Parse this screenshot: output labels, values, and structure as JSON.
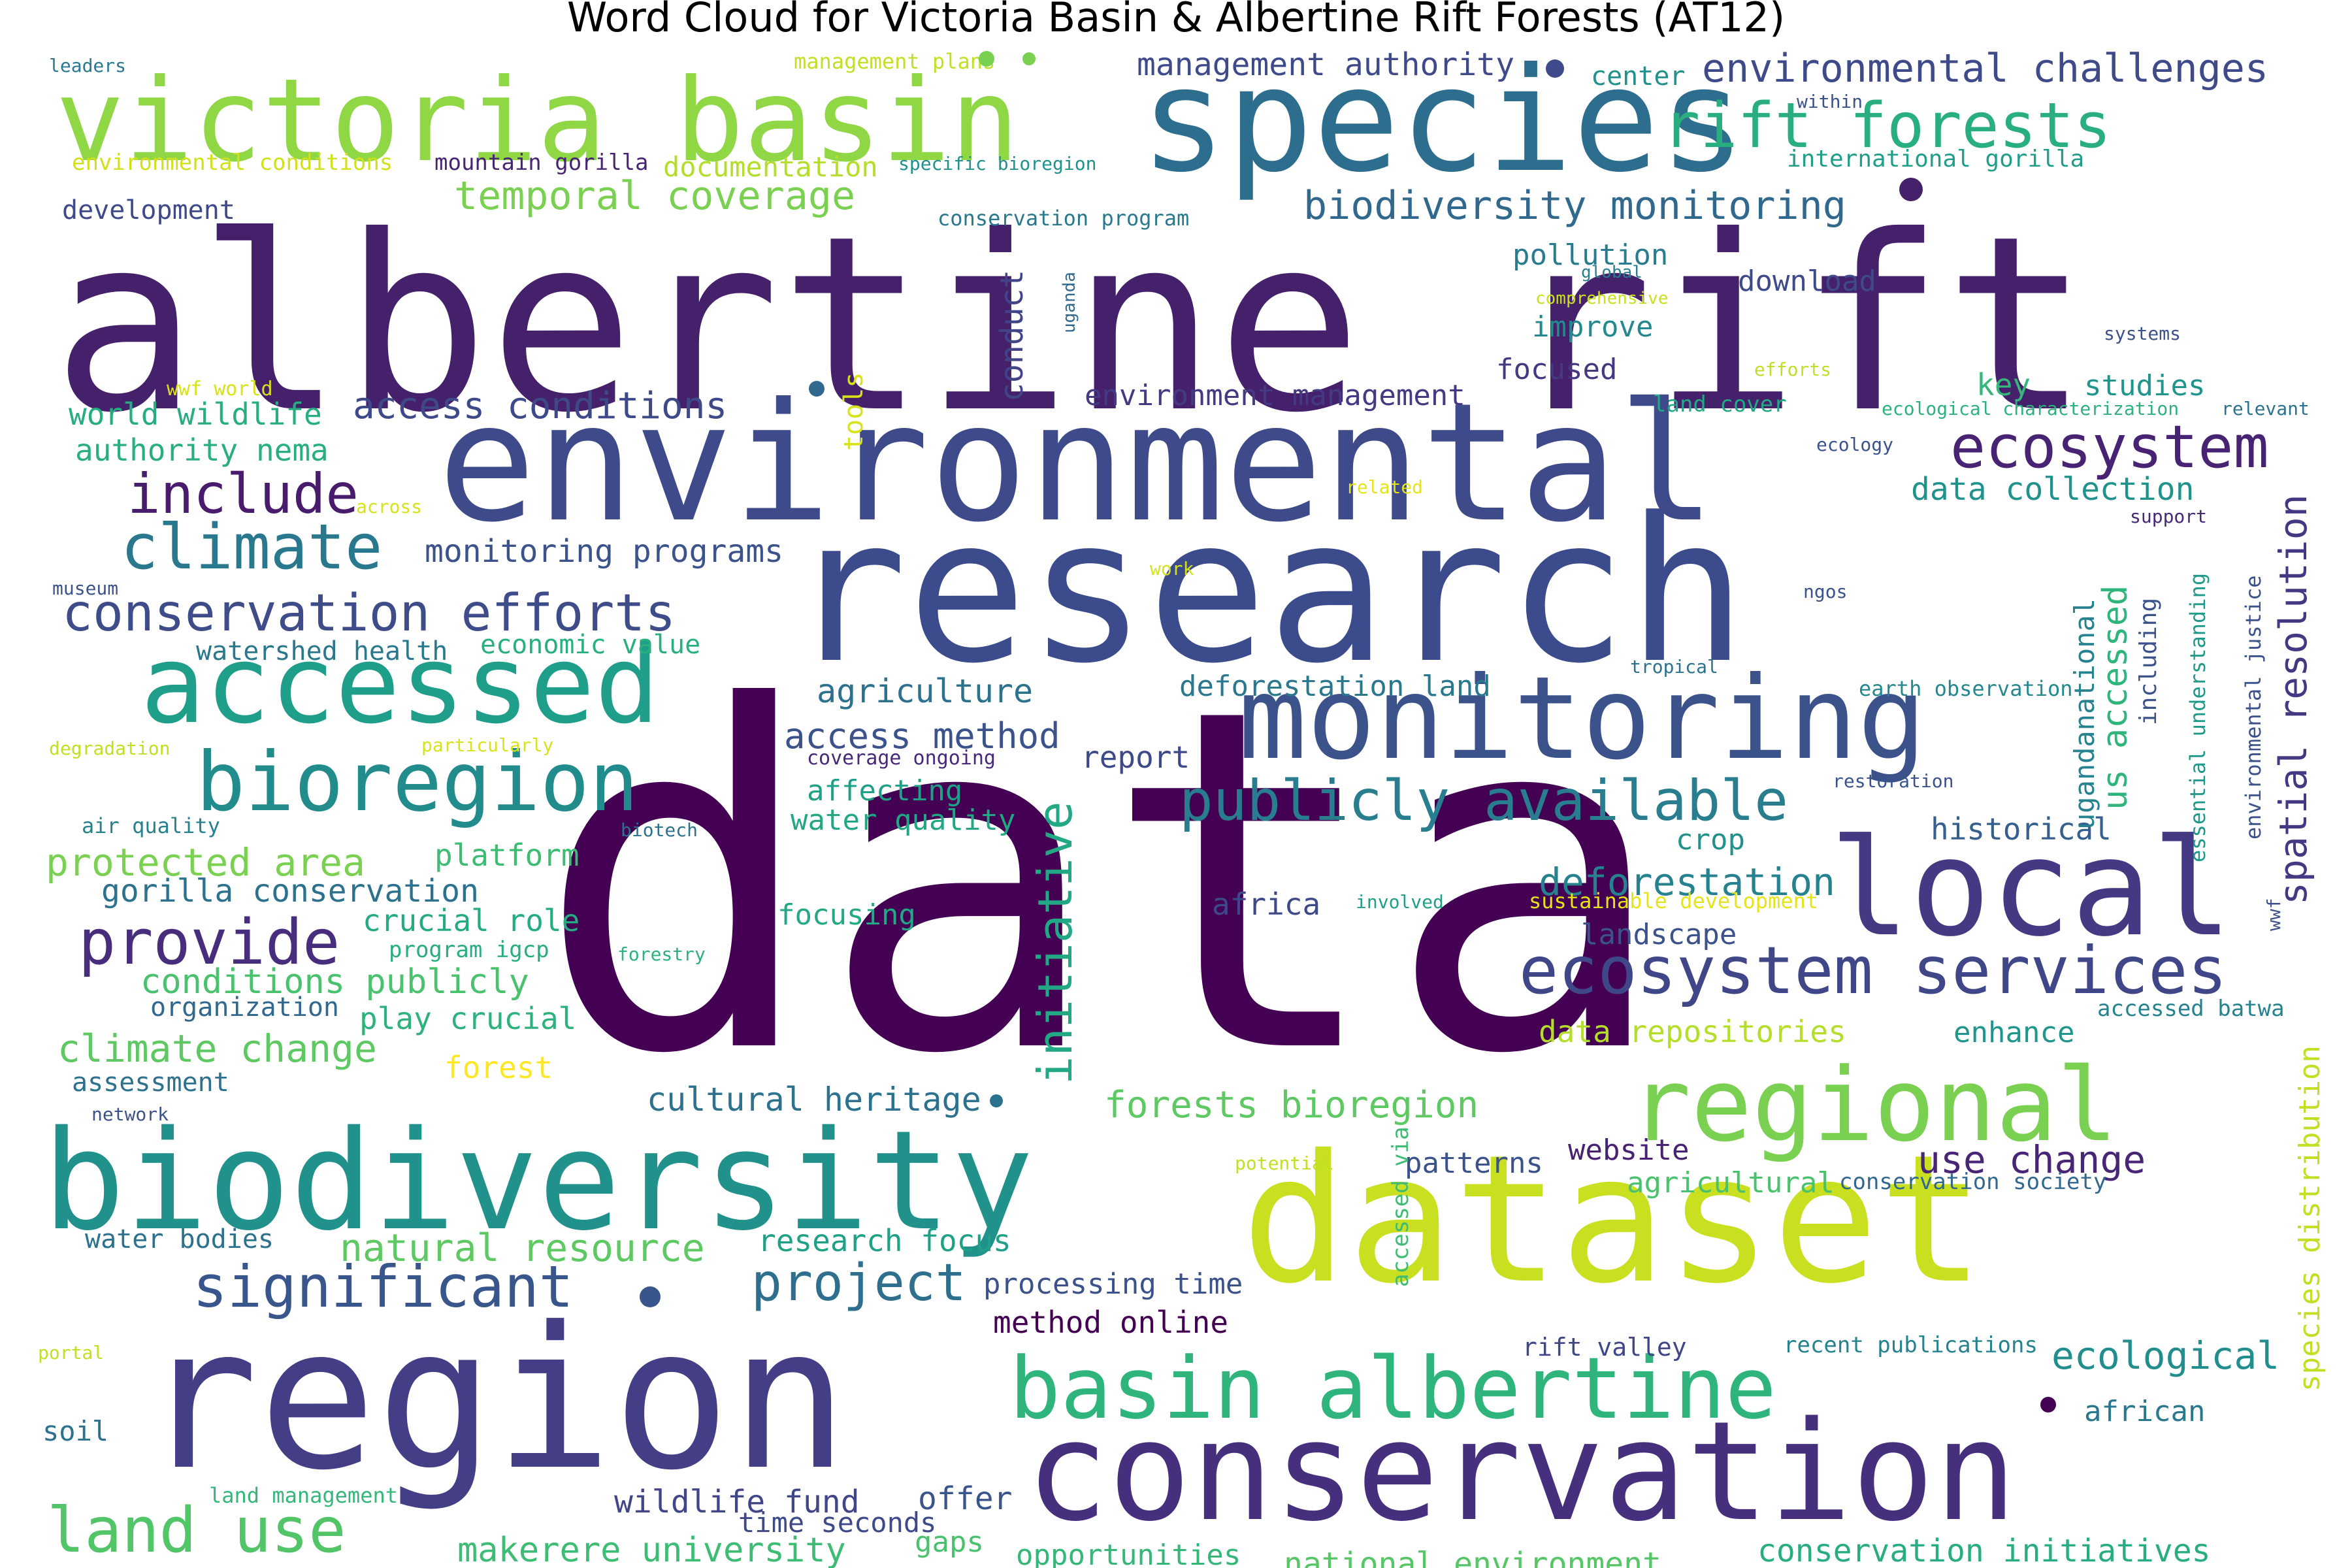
{
  "title": "Word Cloud for Victoria Basin & Albertine Rift Forests (AT12)",
  "words": [
    {
      "text": "data",
      "color": "#440154"
    },
    {
      "text": "albertine rift",
      "color": "#46216b"
    },
    {
      "text": "research",
      "color": "#3b4b8c"
    },
    {
      "text": "environmental",
      "color": "#3e4a89"
    },
    {
      "text": "region",
      "color": "#433e85"
    },
    {
      "text": "dataset",
      "color": "#c8e020"
    },
    {
      "text": "conservation",
      "color": "#46307e"
    },
    {
      "text": "biodiversity",
      "color": "#21918c"
    },
    {
      "text": "species",
      "color": "#2d6e8e"
    },
    {
      "text": "victoria basin",
      "color": "#8fd744"
    },
    {
      "text": "monitoring",
      "color": "#3b528b"
    },
    {
      "text": "local",
      "color": "#443a83"
    },
    {
      "text": "accessed",
      "color": "#1f9e89"
    },
    {
      "text": "regional",
      "color": "#7ad151"
    },
    {
      "text": "bioregion",
      "color": "#228c8d"
    },
    {
      "text": "basin albertine",
      "color": "#2fb47c"
    },
    {
      "text": "rift forests",
      "color": "#29af7f"
    },
    {
      "text": "ecosystem services",
      "color": "#3f4788"
    },
    {
      "text": "ecosystem",
      "color": "#482374"
    },
    {
      "text": "publicly available",
      "color": "#287d8e"
    },
    {
      "text": "significant",
      "color": "#39568c"
    },
    {
      "text": "climate",
      "color": "#2a788e"
    },
    {
      "text": "provide",
      "color": "#472d7b"
    },
    {
      "text": "include",
      "color": "#481b6d"
    },
    {
      "text": "conservation efforts",
      "color": "#3e4c8a"
    },
    {
      "text": "land use",
      "color": "#52c569"
    },
    {
      "text": "project",
      "color": "#2e6f8e"
    },
    {
      "text": "spatial resolution",
      "color": "#453882"
    },
    {
      "text": "initiative",
      "color": "#22a884"
    },
    {
      "text": "environmental challenges",
      "color": "#3e4a89"
    },
    {
      "text": "biodiversity monitoring",
      "color": "#31688e"
    },
    {
      "text": "temporal coverage",
      "color": "#7ad151"
    },
    {
      "text": "access conditions",
      "color": "#3e4989"
    },
    {
      "text": "deforestation",
      "color": "#26828e"
    },
    {
      "text": "climate change",
      "color": "#5ec962"
    },
    {
      "text": "protected area",
      "color": "#7ad151"
    },
    {
      "text": "natural resource",
      "color": "#5ec962"
    },
    {
      "text": "ecological",
      "color": "#218e8d"
    },
    {
      "text": "use change",
      "color": "#482576"
    },
    {
      "text": "makerere university",
      "color": "#3dbc74"
    },
    {
      "text": "national environment",
      "color": "#56c667"
    },
    {
      "text": "conservation initiatives",
      "color": "#27ad81"
    },
    {
      "text": "access method",
      "color": "#3b528b"
    },
    {
      "text": "agriculture",
      "color": "#2c728e"
    },
    {
      "text": "data collection",
      "color": "#20928c"
    },
    {
      "text": "environment management",
      "color": "#443983"
    },
    {
      "text": "management authority",
      "color": "#3e4a89"
    },
    {
      "text": "monitoring programs",
      "color": "#3b528b"
    },
    {
      "text": "world wildlife",
      "color": "#27ad81"
    },
    {
      "text": "authority nema",
      "color": "#29af7f"
    },
    {
      "text": "gorilla conservation",
      "color": "#2c728e"
    },
    {
      "text": "conditions publicly",
      "color": "#4ac16d"
    },
    {
      "text": "play crucial",
      "color": "#2db27d"
    },
    {
      "text": "crucial role",
      "color": "#25ab82"
    },
    {
      "text": "forests bioregion",
      "color": "#5ec962"
    },
    {
      "text": "cultural heritage",
      "color": "#2c718e"
    },
    {
      "text": "research focus",
      "color": "#1fa187"
    },
    {
      "text": "processing time",
      "color": "#3b528b"
    },
    {
      "text": "method online",
      "color": "#440154"
    },
    {
      "text": "wildlife fund",
      "color": "#404688"
    },
    {
      "text": "offer",
      "color": "#3a548c"
    },
    {
      "text": "time seconds",
      "color": "#3e4989"
    },
    {
      "text": "opportunities",
      "color": "#35b779"
    },
    {
      "text": "gaps",
      "color": "#4ac16d"
    },
    {
      "text": "pollution",
      "color": "#287c8e"
    },
    {
      "text": "download",
      "color": "#3e4a89"
    },
    {
      "text": "improve",
      "color": "#23898e"
    },
    {
      "text": "focused",
      "color": "#453781"
    },
    {
      "text": "key",
      "color": "#35b779"
    },
    {
      "text": "studies",
      "color": "#1f958b"
    },
    {
      "text": "landscape",
      "color": "#3b528b"
    },
    {
      "text": "africa",
      "color": "#3e4989"
    },
    {
      "text": "crop",
      "color": "#21918c"
    },
    {
      "text": "historical",
      "color": "#355f8d"
    },
    {
      "text": "enhance",
      "color": "#1f968b"
    },
    {
      "text": "report",
      "color": "#3e4989"
    },
    {
      "text": "affecting",
      "color": "#1fa188"
    },
    {
      "text": "water quality",
      "color": "#22a785"
    },
    {
      "text": "coverage ongoing",
      "color": "#482878"
    },
    {
      "text": "focusing",
      "color": "#22a884"
    },
    {
      "text": "deforestation land",
      "color": "#2a788e"
    },
    {
      "text": "data repositories",
      "color": "#b5de2b"
    },
    {
      "text": "website",
      "color": "#482173"
    },
    {
      "text": "patterns",
      "color": "#3b528b"
    },
    {
      "text": "agricultural",
      "color": "#4ac16d"
    },
    {
      "text": "african",
      "color": "#2a788e"
    },
    {
      "text": "rift valley",
      "color": "#404688"
    },
    {
      "text": "recent publications",
      "color": "#26828e"
    },
    {
      "text": "conservation society",
      "color": "#31688e"
    },
    {
      "text": "accessed batwa",
      "color": "#26828e"
    },
    {
      "text": "us accessed",
      "color": "#2fb47c"
    },
    {
      "text": "ugandanational",
      "color": "#26828e"
    },
    {
      "text": "including",
      "color": "#3b528b"
    },
    {
      "text": "species distribution",
      "color": "#c2df23"
    },
    {
      "text": "essential understanding",
      "color": "#1f9a8a"
    },
    {
      "text": "environmental justice",
      "color": "#3b528b"
    },
    {
      "text": "conduct",
      "color": "#414487"
    },
    {
      "text": "tools",
      "color": "#d8e219"
    },
    {
      "text": "uganda",
      "color": "#31688e"
    },
    {
      "text": "accessed via",
      "color": "#3dbc74"
    },
    {
      "text": "watershed health",
      "color": "#2a788e"
    },
    {
      "text": "economic value",
      "color": "#2ab07f"
    },
    {
      "text": "platform",
      "color": "#3dbc74"
    },
    {
      "text": "program igcp",
      "color": "#27ad81"
    },
    {
      "text": "organization",
      "color": "#31688e"
    },
    {
      "text": "assessment",
      "color": "#2c728e"
    },
    {
      "text": "forest",
      "color": "#fde725"
    },
    {
      "text": "water bodies",
      "color": "#2c728e"
    },
    {
      "text": "soil",
      "color": "#2c728e"
    },
    {
      "text": "land management",
      "color": "#35b779"
    },
    {
      "text": "development",
      "color": "#3e4989"
    },
    {
      "text": "documentation",
      "color": "#b5de2b"
    },
    {
      "text": "mountain gorilla",
      "color": "#482475"
    },
    {
      "text": "environmental conditions",
      "color": "#d0e11c"
    },
    {
      "text": "management plans",
      "color": "#c2df23"
    },
    {
      "text": "leaders",
      "color": "#2a788e"
    },
    {
      "text": "center",
      "color": "#21918c"
    },
    {
      "text": "within",
      "color": "#3b528b"
    },
    {
      "text": "international gorilla",
      "color": "#1f9e89"
    },
    {
      "text": "specific bioregion",
      "color": "#21918c"
    },
    {
      "text": "conservation program",
      "color": "#2a788e"
    },
    {
      "text": "global",
      "color": "#287d8e"
    },
    {
      "text": "comprehensive",
      "color": "#c8e020"
    },
    {
      "text": "systems",
      "color": "#3b528b"
    },
    {
      "text": "efforts",
      "color": "#c2df23"
    },
    {
      "text": "wwf world",
      "color": "#d8e219"
    },
    {
      "text": "land cover",
      "color": "#22a884"
    },
    {
      "text": "ecological characterization",
      "color": "#2db27d"
    },
    {
      "text": "relevant",
      "color": "#2c728e"
    },
    {
      "text": "ecology",
      "color": "#3b528b"
    },
    {
      "text": "related",
      "color": "#e5e419"
    },
    {
      "text": "across",
      "color": "#d8e219"
    },
    {
      "text": "support",
      "color": "#482878"
    },
    {
      "text": "museum",
      "color": "#3b528b"
    },
    {
      "text": "work",
      "color": "#d8e219"
    },
    {
      "text": "ngos",
      "color": "#3b528b"
    },
    {
      "text": "tropical",
      "color": "#2c728e"
    },
    {
      "text": "earth observation",
      "color": "#23898e"
    },
    {
      "text": "degradation",
      "color": "#c2df23"
    },
    {
      "text": "particularly",
      "color": "#d8e219"
    },
    {
      "text": "air quality",
      "color": "#26828e"
    },
    {
      "text": "biotech",
      "color": "#2c728e"
    },
    {
      "text": "restoration",
      "color": "#3b528b"
    },
    {
      "text": "involved",
      "color": "#1f9e89"
    },
    {
      "text": "sustainable development",
      "color": "#e5e419"
    },
    {
      "text": "forestry",
      "color": "#2db27d"
    },
    {
      "text": "wwf",
      "color": "#3b528b"
    },
    {
      "text": "network",
      "color": "#3b528b"
    },
    {
      "text": "potential",
      "color": "#c2df23"
    },
    {
      "text": "portal",
      "color": "#c2df23"
    }
  ]
}
